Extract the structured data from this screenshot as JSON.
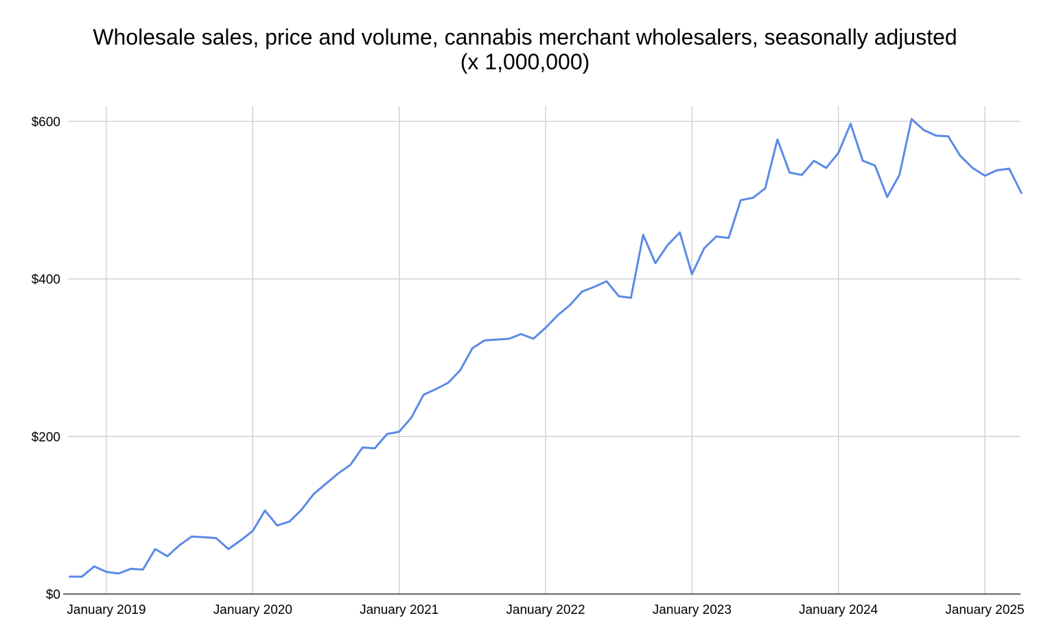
{
  "chart_data": {
    "type": "line",
    "title": "Wholesale sales, price and volume, cannabis merchant wholesalers, seasonally adjusted",
    "subtitle": "(x 1,000,000)",
    "xlabel": "",
    "ylabel": "",
    "ylim": [
      0,
      600
    ],
    "y_ticks": [
      0,
      200,
      400,
      600
    ],
    "y_tick_labels": [
      "$0",
      "$200",
      "$400",
      "$600"
    ],
    "x_ticks": [
      "2019-01",
      "2020-01",
      "2021-01",
      "2022-01",
      "2023-01",
      "2024-01",
      "2025-01"
    ],
    "x_tick_labels": [
      "January 2019",
      "January 2020",
      "January 2021",
      "January 2022",
      "January 2023",
      "January 2024",
      "January 2025"
    ],
    "grid": true,
    "legend": "none",
    "color": "#5b8ae6",
    "series": [
      {
        "x": [
          "2018-10",
          "2018-11",
          "2018-12",
          "2019-01",
          "2019-02",
          "2019-03",
          "2019-04",
          "2019-05",
          "2019-06",
          "2019-07",
          "2019-08",
          "2019-09",
          "2019-10",
          "2019-11",
          "2019-12",
          "2020-01",
          "2020-02",
          "2020-03",
          "2020-04",
          "2020-05",
          "2020-06",
          "2020-07",
          "2020-08",
          "2020-09",
          "2020-10",
          "2020-11",
          "2020-12",
          "2021-01",
          "2021-02",
          "2021-03",
          "2021-04",
          "2021-05",
          "2021-06",
          "2021-07",
          "2021-08",
          "2021-09",
          "2021-10",
          "2021-11",
          "2021-12",
          "2022-01",
          "2022-02",
          "2022-03",
          "2022-04",
          "2022-05",
          "2022-06",
          "2022-07",
          "2022-08",
          "2022-09",
          "2022-10",
          "2022-11",
          "2022-12",
          "2023-01",
          "2023-02",
          "2023-03",
          "2023-04",
          "2023-05",
          "2023-06",
          "2023-07",
          "2023-08",
          "2023-09",
          "2023-10",
          "2023-11",
          "2023-12",
          "2024-01",
          "2024-02",
          "2024-03",
          "2024-04",
          "2024-05",
          "2024-06",
          "2024-07",
          "2024-08",
          "2024-09",
          "2024-10",
          "2024-11",
          "2024-12",
          "2025-01",
          "2025-02",
          "2025-03",
          "2025-04"
        ],
        "values": [
          22,
          22,
          35,
          28,
          26,
          32,
          31,
          57,
          48,
          62,
          73,
          72,
          71,
          57,
          68,
          80,
          106,
          87,
          92,
          107,
          127,
          140,
          153,
          164,
          186,
          185,
          203,
          206,
          224,
          253,
          260,
          268,
          284,
          312,
          322,
          323,
          324,
          330,
          324,
          338,
          354,
          367,
          384,
          390,
          397,
          378,
          376,
          456,
          420,
          443,
          459,
          406,
          439,
          454,
          452,
          500,
          503,
          515,
          577,
          535,
          532,
          550,
          541,
          560,
          597,
          550,
          544,
          504,
          532,
          603,
          589,
          582,
          581,
          556,
          541,
          531,
          538,
          540,
          509
        ]
      }
    ]
  }
}
